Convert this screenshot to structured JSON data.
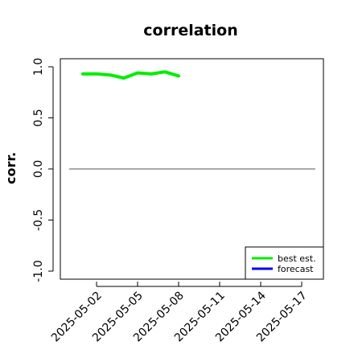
{
  "chart_data": {
    "type": "line",
    "title": "correlation",
    "xlabel": "",
    "ylabel": "corr.",
    "ylim": [
      -1.0,
      1.0
    ],
    "yticks": [
      "-1.0",
      "-0.5",
      "0.0",
      "0.5",
      "1.0"
    ],
    "xticks": [
      "2025-05-02",
      "2025-05-05",
      "2025-05-08",
      "2025-05-11",
      "2025-05-14",
      "2025-05-17"
    ],
    "highlight_tick": "2025-05-08",
    "highlight_color": "#228B22",
    "reference_line": {
      "y": 0.0,
      "x_start": "2025-04-30",
      "x_end": "2025-05-18"
    },
    "series": [
      {
        "name": "best est.",
        "color": "#00ee00",
        "x": [
          "2025-05-01",
          "2025-05-02",
          "2025-05-03",
          "2025-05-04",
          "2025-05-05",
          "2025-05-06",
          "2025-05-07",
          "2025-05-08"
        ],
        "values": [
          0.93,
          0.93,
          0.92,
          0.89,
          0.94,
          0.93,
          0.95,
          0.91
        ]
      },
      {
        "name": "forecast",
        "color": "#0000ff",
        "x": [],
        "values": []
      }
    ],
    "legend_position": "bottom-right",
    "grid": false
  }
}
